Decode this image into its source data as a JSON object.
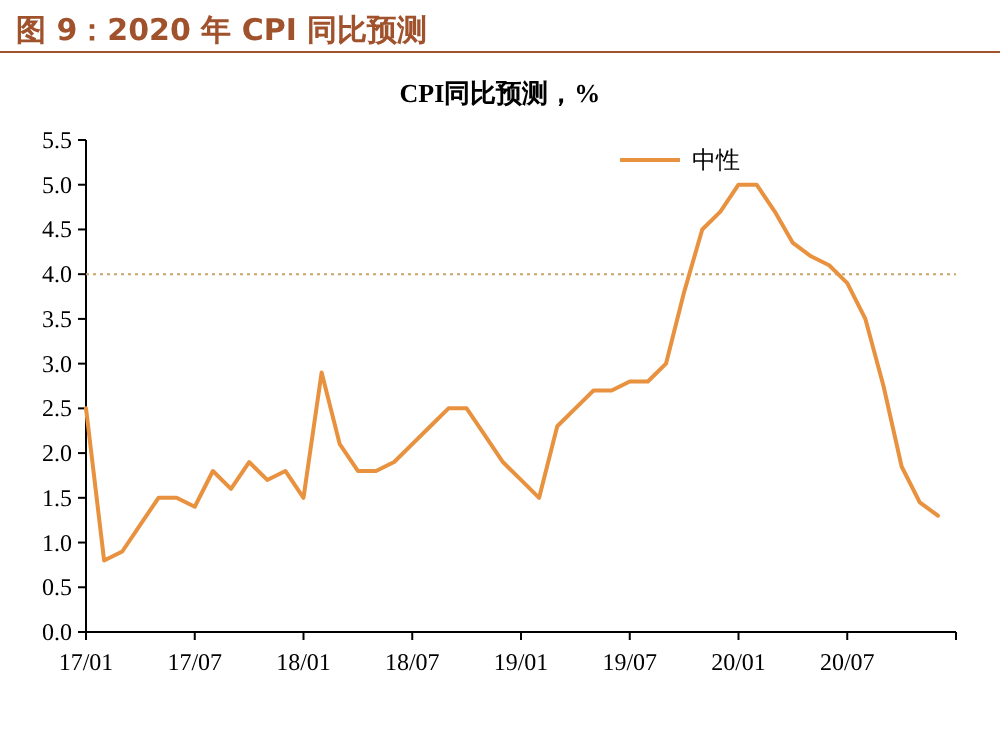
{
  "chart_data": {
    "type": "line",
    "title": "图 9：2020 年 CPI 同比预测",
    "subtitle": "CPI同比预测，%",
    "x": [
      "2017-01",
      "2017-02",
      "2017-03",
      "2017-04",
      "2017-05",
      "2017-06",
      "2017-07",
      "2017-08",
      "2017-09",
      "2017-10",
      "2017-11",
      "2017-12",
      "2018-01",
      "2018-02",
      "2018-03",
      "2018-04",
      "2018-05",
      "2018-06",
      "2018-07",
      "2018-08",
      "2018-09",
      "2018-10",
      "2018-11",
      "2018-12",
      "2019-01",
      "2019-02",
      "2019-03",
      "2019-04",
      "2019-05",
      "2019-06",
      "2019-07",
      "2019-08",
      "2019-09",
      "2019-10",
      "2019-11",
      "2019-12",
      "2020-01",
      "2020-02",
      "2020-03",
      "2020-04",
      "2020-05",
      "2020-06",
      "2020-07",
      "2020-08",
      "2020-09",
      "2020-10",
      "2020-11",
      "2020-12"
    ],
    "series": [
      {
        "name": "中性",
        "color": "#e8913f",
        "values": [
          2.5,
          0.8,
          0.9,
          1.2,
          1.5,
          1.5,
          1.4,
          1.8,
          1.6,
          1.9,
          1.7,
          1.8,
          1.5,
          2.9,
          2.1,
          1.8,
          1.8,
          1.9,
          2.1,
          2.3,
          2.5,
          2.5,
          2.2,
          1.9,
          1.7,
          1.5,
          2.3,
          2.5,
          2.7,
          2.7,
          2.8,
          2.8,
          3.0,
          3.8,
          4.5,
          4.7,
          5.0,
          5.0,
          4.7,
          4.35,
          4.2,
          4.1,
          3.9,
          3.5,
          2.75,
          1.85,
          1.45,
          1.3
        ]
      }
    ],
    "xlim": [
      "2017-01",
      "2021-01"
    ],
    "xticks": [
      {
        "value": "2017-01",
        "label": "17/01"
      },
      {
        "value": "2017-07",
        "label": "17/07"
      },
      {
        "value": "2018-01",
        "label": "18/01"
      },
      {
        "value": "2018-07",
        "label": "18/07"
      },
      {
        "value": "2019-01",
        "label": "19/01"
      },
      {
        "value": "2019-07",
        "label": "19/07"
      },
      {
        "value": "2020-01",
        "label": "20/01"
      },
      {
        "value": "2020-07",
        "label": "20/07"
      },
      {
        "value": "2021-01",
        "label": null
      }
    ],
    "ylim": [
      0,
      5.5
    ],
    "yticks": [
      {
        "value": 0,
        "label": "0.0"
      },
      {
        "value": 0.5,
        "label": "0.5"
      },
      {
        "value": 1,
        "label": "1.0"
      },
      {
        "value": 1.5,
        "label": "1.5"
      },
      {
        "value": 2,
        "label": "2.0"
      },
      {
        "value": 2.5,
        "label": "2.5"
      },
      {
        "value": 3,
        "label": "3.0"
      },
      {
        "value": 3.5,
        "label": "3.5"
      },
      {
        "value": 4,
        "label": "4.0"
      },
      {
        "value": 4.5,
        "label": "4.5"
      },
      {
        "value": 5,
        "label": "5.0"
      },
      {
        "value": 5.5,
        "label": "5.5"
      }
    ],
    "ref_lines": [
      {
        "axis": "y",
        "value": 4,
        "color": "#c9a36b",
        "line_style": "dotted"
      }
    ],
    "legend": "top right",
    "grid": false,
    "marker": "none",
    "line_style": "solid"
  }
}
